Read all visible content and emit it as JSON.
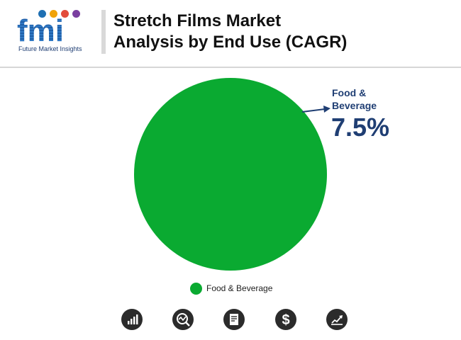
{
  "logo": {
    "letters": "fmi",
    "tagline": "Future Market Insights"
  },
  "title": {
    "line1": "Stretch Films Market",
    "line2": "Analysis by End Use (CAGR)"
  },
  "colors": {
    "slice": "#0aaa31",
    "callout": "#1f3e73",
    "footer_icon": "#2b2b2b"
  },
  "chart_data": {
    "type": "pie",
    "categories": [
      "Food & Beverage"
    ],
    "values": [
      7.5
    ],
    "value_labels": [
      "7.5%"
    ],
    "legend": [
      "Food & Beverage"
    ],
    "legend_position": "bottom"
  },
  "callout": {
    "label_line1": "Food &",
    "label_line2": "Beverage",
    "value": "7.5%"
  },
  "footer": {
    "icons": [
      "bar-chart-icon",
      "magnifier-chart-icon",
      "report-icon",
      "dollar-icon",
      "growth-chart-icon"
    ]
  }
}
